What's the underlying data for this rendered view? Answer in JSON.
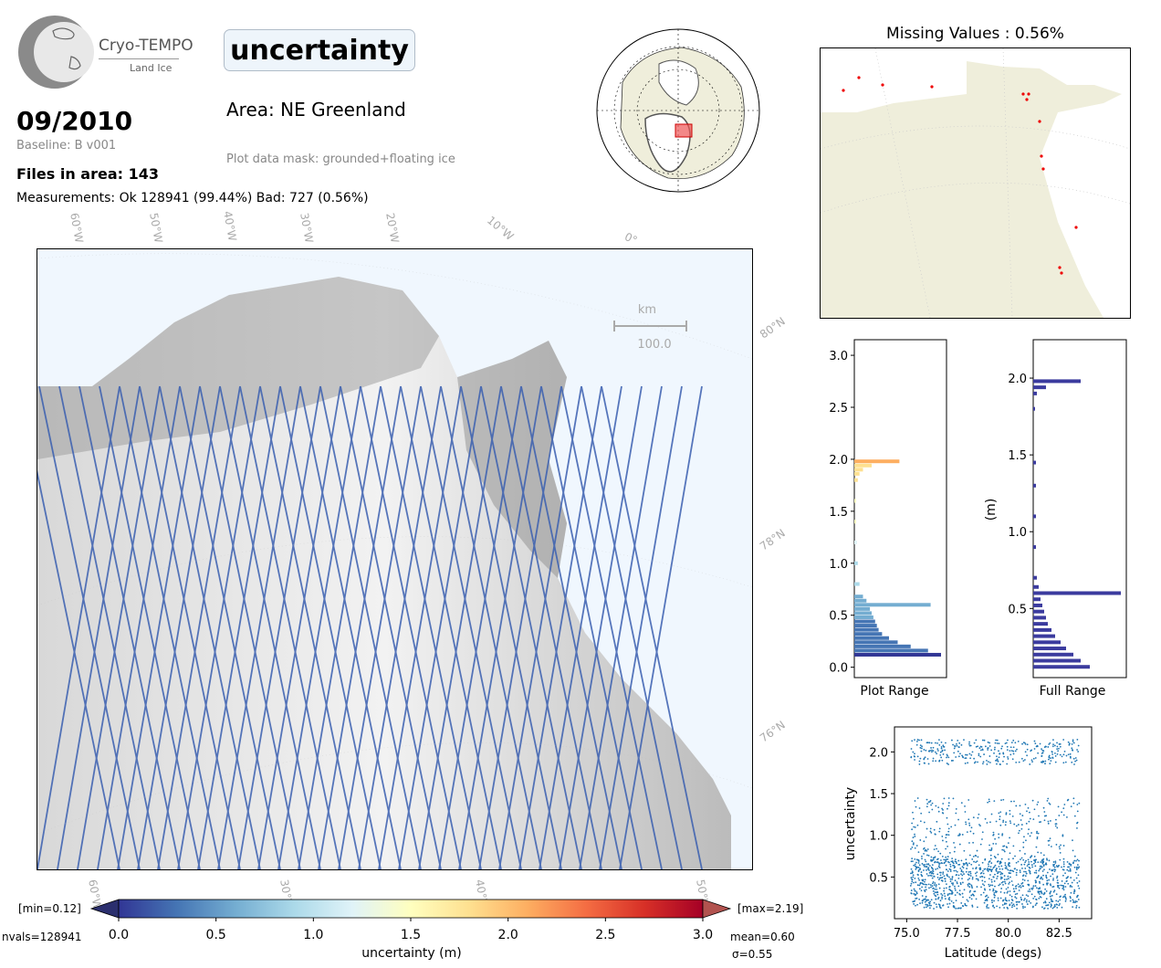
{
  "header": {
    "logo_name": "Cryo-TEMPO",
    "logo_sub": "Land Ice",
    "date": "09/2010",
    "baseline": "Baseline: B v001",
    "files": "Files in area: 143",
    "measurements": "Measurements: Ok 128941 (99.44%) Bad: 727 (0.56%)",
    "parameter": "uncertainty",
    "area": "Area: NE Greenland",
    "mask": "Plot data mask: grounded+floating ice"
  },
  "main_map": {
    "lon_labels": [
      "60°W",
      "50°W",
      "40°W",
      "30°W",
      "20°W",
      "10°W",
      "0°"
    ],
    "lat_labels": [
      "80°N",
      "78°N",
      "76°N"
    ],
    "bottom_lon_labels": [
      "60°W",
      "30°W",
      "40°W",
      "50°W"
    ],
    "scalebar_unit": "km",
    "scalebar_value": "100.0"
  },
  "missing": {
    "title": "Missing Values : 0.56%"
  },
  "colorbar": {
    "label": "uncertainty (m)",
    "min_label": "[min=0.12]",
    "max_label": "[max=2.19]",
    "ticks": [
      "0.0",
      "0.5",
      "1.0",
      "1.5",
      "2.0",
      "2.5",
      "3.0"
    ],
    "nvals": "nvals=128941",
    "mean": "mean=0.60",
    "sigma": "σ=0.55",
    "colors": [
      "#313695",
      "#4575b4",
      "#74add1",
      "#abd9e9",
      "#e0f3f8",
      "#ffffbf",
      "#fee090",
      "#fdae61",
      "#f46d43",
      "#d73027",
      "#a50026"
    ]
  },
  "chart_data": [
    {
      "type": "bar",
      "orientation": "horizontal",
      "title": "",
      "xlabel": "Plot Range",
      "ylabel": "",
      "ylim": [
        -0.1,
        3.15
      ],
      "yticks": [
        "0.0",
        "0.5",
        "1.0",
        "1.5",
        "2.0",
        "2.5",
        "3.0"
      ],
      "bins_y": [
        0.12,
        0.16,
        0.2,
        0.24,
        0.28,
        0.32,
        0.36,
        0.4,
        0.44,
        0.48,
        0.52,
        0.56,
        0.6,
        0.64,
        0.68,
        0.8,
        1.0,
        1.2,
        1.4,
        1.6,
        1.8,
        1.86,
        1.9,
        1.94,
        1.98
      ],
      "counts": [
        100,
        85,
        65,
        50,
        40,
        32,
        28,
        26,
        24,
        22,
        20,
        18,
        88,
        14,
        10,
        6,
        4,
        3,
        2,
        2,
        4,
        6,
        10,
        20,
        52
      ]
    },
    {
      "type": "bar",
      "orientation": "horizontal",
      "title": "",
      "xlabel": "Full Range",
      "ylabel": "(m)",
      "ylim": [
        0.05,
        2.25
      ],
      "yticks": [
        "0.5",
        "1.0",
        "1.5",
        "2.0"
      ],
      "bins_y": [
        0.12,
        0.16,
        0.2,
        0.24,
        0.28,
        0.32,
        0.36,
        0.4,
        0.44,
        0.48,
        0.52,
        0.56,
        0.6,
        0.64,
        0.7,
        0.9,
        1.1,
        1.3,
        1.45,
        1.8,
        1.9,
        1.94,
        1.98
      ],
      "counts": [
        62,
        52,
        44,
        36,
        30,
        24,
        20,
        16,
        14,
        12,
        10,
        8,
        96,
        6,
        4,
        3,
        3,
        3,
        3,
        2,
        4,
        14,
        52
      ]
    },
    {
      "type": "scatter",
      "title": "",
      "xlabel": "Latitude (degs)",
      "ylabel": "uncertainty",
      "xlim": [
        74.4,
        84.1
      ],
      "ylim": [
        0.0,
        2.3
      ],
      "xticks": [
        "75.0",
        "77.5",
        "80.0",
        "82.5"
      ],
      "yticks": [
        "0.5",
        "1.0",
        "1.5",
        "2.0"
      ],
      "color": "#1f77b4"
    }
  ]
}
